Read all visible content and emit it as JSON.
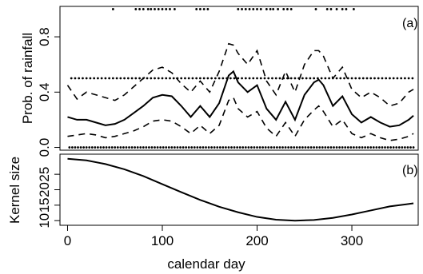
{
  "chart_data": [
    {
      "type": "line",
      "panel_label": "(a)",
      "ylabel": "Prob. of rainfall",
      "xlabel": "",
      "xlim": [
        -8,
        370
      ],
      "ylim": [
        -0.02,
        1.02
      ],
      "yticks": [
        0.0,
        0.4,
        0.8
      ],
      "ytick_labels": [
        "0.0",
        "0.4",
        "0.8"
      ],
      "grid": false,
      "series": [
        {
          "style": "solid",
          "x": [
            0,
            10,
            20,
            30,
            40,
            50,
            60,
            70,
            80,
            90,
            100,
            110,
            120,
            130,
            140,
            150,
            160,
            170,
            175,
            180,
            190,
            200,
            210,
            220,
            230,
            240,
            250,
            260,
            265,
            270,
            280,
            290,
            300,
            310,
            320,
            330,
            340,
            350,
            360,
            365
          ],
          "values": [
            0.22,
            0.2,
            0.2,
            0.18,
            0.16,
            0.17,
            0.2,
            0.25,
            0.3,
            0.36,
            0.38,
            0.37,
            0.3,
            0.22,
            0.3,
            0.22,
            0.32,
            0.52,
            0.55,
            0.47,
            0.4,
            0.45,
            0.28,
            0.2,
            0.33,
            0.2,
            0.38,
            0.47,
            0.49,
            0.45,
            0.3,
            0.37,
            0.24,
            0.18,
            0.22,
            0.18,
            0.15,
            0.16,
            0.2,
            0.23
          ]
        },
        {
          "style": "dashed",
          "x": [
            0,
            10,
            20,
            30,
            40,
            50,
            60,
            70,
            80,
            90,
            100,
            110,
            120,
            130,
            140,
            150,
            160,
            170,
            175,
            180,
            190,
            200,
            210,
            220,
            230,
            240,
            250,
            260,
            265,
            270,
            280,
            290,
            300,
            310,
            320,
            330,
            340,
            350,
            360,
            365
          ],
          "values": [
            0.45,
            0.35,
            0.4,
            0.38,
            0.36,
            0.34,
            0.38,
            0.44,
            0.5,
            0.56,
            0.58,
            0.54,
            0.46,
            0.4,
            0.48,
            0.4,
            0.55,
            0.75,
            0.74,
            0.68,
            0.6,
            0.7,
            0.48,
            0.38,
            0.55,
            0.4,
            0.6,
            0.7,
            0.7,
            0.66,
            0.5,
            0.58,
            0.42,
            0.36,
            0.4,
            0.36,
            0.3,
            0.32,
            0.4,
            0.42
          ]
        },
        {
          "style": "dashed",
          "x": [
            0,
            10,
            20,
            30,
            40,
            50,
            60,
            70,
            80,
            90,
            100,
            110,
            120,
            130,
            140,
            150,
            160,
            170,
            175,
            180,
            190,
            200,
            210,
            220,
            230,
            240,
            250,
            260,
            265,
            270,
            280,
            290,
            300,
            310,
            320,
            330,
            340,
            350,
            360,
            365
          ],
          "values": [
            0.08,
            0.09,
            0.1,
            0.09,
            0.07,
            0.08,
            0.1,
            0.12,
            0.15,
            0.19,
            0.2,
            0.19,
            0.15,
            0.1,
            0.16,
            0.1,
            0.16,
            0.34,
            0.36,
            0.28,
            0.22,
            0.26,
            0.14,
            0.08,
            0.18,
            0.08,
            0.2,
            0.27,
            0.3,
            0.26,
            0.15,
            0.2,
            0.1,
            0.07,
            0.1,
            0.07,
            0.05,
            0.06,
            0.08,
            0.1
          ]
        }
      ],
      "points_rows": [
        {
          "y": 1.0,
          "x": [
            48,
            72,
            76,
            80,
            85,
            88,
            92,
            96,
            100,
            104,
            108,
            113,
            136,
            140,
            144,
            148,
            180,
            184,
            188,
            192,
            196,
            200,
            204,
            210,
            214,
            217,
            222,
            228,
            232,
            236,
            262,
            274,
            278,
            284,
            290,
            294,
            302
          ]
        },
        {
          "y": 0.5,
          "x": [
            4,
            8,
            12,
            16,
            20,
            24,
            28,
            32,
            36,
            40,
            44,
            48,
            52,
            56,
            60,
            64,
            68,
            72,
            76,
            80,
            84,
            88,
            92,
            96,
            100,
            104,
            108,
            112,
            116,
            120,
            124,
            128,
            132,
            136,
            140,
            144,
            148,
            152,
            156,
            160,
            164,
            168,
            172,
            176,
            180,
            184,
            188,
            192,
            196,
            200,
            204,
            208,
            212,
            216,
            220,
            224,
            228,
            232,
            236,
            240,
            244,
            248,
            252,
            256,
            260,
            264,
            268,
            272,
            276,
            280,
            284,
            288,
            292,
            296,
            300,
            304,
            308,
            312,
            316,
            320,
            324,
            328,
            332,
            336,
            340,
            344,
            348,
            352,
            356,
            360,
            364
          ]
        },
        {
          "y": 0.0,
          "x": [
            2,
            5,
            8,
            11,
            14,
            17,
            20,
            23,
            26,
            29,
            32,
            35,
            38,
            41,
            44,
            47,
            50,
            53,
            56,
            59,
            62,
            65,
            68,
            71,
            74,
            77,
            80,
            83,
            86,
            89,
            92,
            95,
            98,
            101,
            104,
            107,
            110,
            113,
            116,
            119,
            122,
            125,
            128,
            131,
            134,
            137,
            140,
            143,
            146,
            149,
            152,
            155,
            158,
            161,
            164,
            167,
            170,
            173,
            176,
            179,
            182,
            185,
            188,
            191,
            194,
            197,
            200,
            203,
            206,
            209,
            212,
            215,
            218,
            221,
            224,
            227,
            230,
            233,
            236,
            239,
            242,
            245,
            248,
            251,
            254,
            257,
            260,
            263,
            266,
            269,
            272,
            275,
            278,
            281,
            284,
            287,
            290,
            293,
            296,
            299,
            302,
            305,
            308,
            311,
            314,
            317,
            320,
            323,
            326,
            329,
            332,
            335,
            338,
            341,
            344,
            347,
            350,
            353,
            356,
            359,
            362,
            365
          ]
        }
      ]
    },
    {
      "type": "line",
      "panel_label": "(b)",
      "ylabel": "Kernel size",
      "xlabel": "calendar day",
      "xlim": [
        -8,
        370
      ],
      "ylim": [
        8.5,
        31.5
      ],
      "yticks": [
        10,
        15,
        20,
        25
      ],
      "ytick_labels": [
        "10",
        "15",
        "20",
        "25"
      ],
      "xticks": [
        0,
        100,
        200,
        300
      ],
      "xtick_labels": [
        "0",
        "100",
        "200",
        "300"
      ],
      "grid": false,
      "series": [
        {
          "style": "solid",
          "x": [
            0,
            20,
            40,
            60,
            80,
            100,
            120,
            140,
            160,
            180,
            200,
            220,
            240,
            260,
            280,
            300,
            320,
            340,
            365
          ],
          "values": [
            30,
            29.5,
            28.3,
            26.6,
            24.4,
            21.8,
            19.2,
            16.7,
            14.5,
            12.7,
            11.2,
            10.3,
            10.0,
            10.2,
            10.9,
            12.0,
            13.3,
            14.6,
            15.6
          ]
        }
      ]
    }
  ]
}
